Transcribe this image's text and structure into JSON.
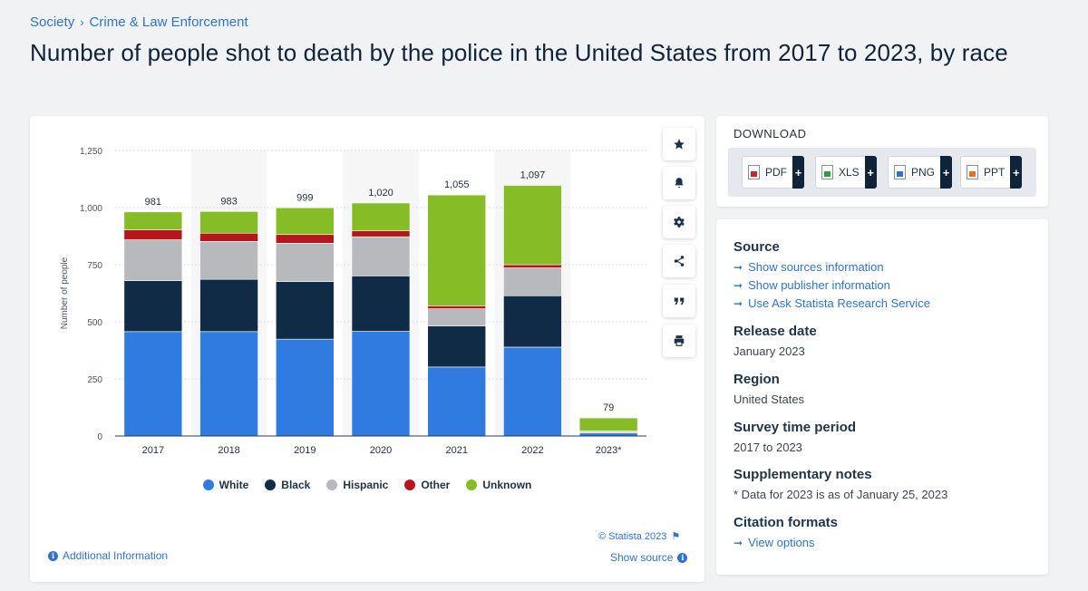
{
  "breadcrumb": {
    "level1": "Society",
    "separator": "›",
    "level2": "Crime & Law Enforcement"
  },
  "page_title": "Number of people shot to death by the police in the United States from 2017 to 2023, by race",
  "chart_data": {
    "type": "bar",
    "stacked": true,
    "title": "",
    "xlabel": "",
    "ylabel": "Number of people",
    "ylim": [
      0,
      1250
    ],
    "yticks": [
      0,
      250,
      500,
      750,
      1000,
      1250
    ],
    "ytick_labels": [
      "0",
      "250",
      "500",
      "750",
      "1,000",
      "1,250"
    ],
    "grid": true,
    "legend_position": "bottom-center",
    "categories": [
      "2017",
      "2018",
      "2019",
      "2020",
      "2021",
      "2022",
      "2023*"
    ],
    "totals": [
      981,
      983,
      999,
      1020,
      1055,
      1097,
      79
    ],
    "total_labels": [
      "981",
      "983",
      "999",
      "1,020",
      "1,055",
      "1,097",
      "79"
    ],
    "series": [
      {
        "name": "White",
        "color": "#2f7be0",
        "values": [
          457,
          457,
          424,
          458,
          302,
          389,
          13
        ]
      },
      {
        "name": "Black",
        "color": "#0f2b45",
        "values": [
          223,
          229,
          252,
          243,
          180,
          225,
          3
        ]
      },
      {
        "name": "Hispanic",
        "color": "#b8b9bc",
        "values": [
          179,
          166,
          168,
          171,
          75,
          122,
          6
        ]
      },
      {
        "name": "Other",
        "color": "#b5161b",
        "values": [
          44,
          36,
          38,
          26,
          13,
          14,
          0
        ]
      },
      {
        "name": "Unknown",
        "color": "#86bc25",
        "values": [
          78,
          95,
          117,
          122,
          485,
          347,
          57
        ]
      }
    ]
  },
  "toolbar": {
    "icons": [
      "star-icon",
      "bell-icon",
      "gear-icon",
      "share-icon",
      "quote-icon",
      "print-icon"
    ]
  },
  "chart_footer": {
    "copyright": "© Statista 2023",
    "show_source": "Show source",
    "additional_info": "Additional Information"
  },
  "download": {
    "title": "DOWNLOAD",
    "buttons": [
      {
        "label": "PDF",
        "plus": "+"
      },
      {
        "label": "XLS",
        "plus": "+"
      },
      {
        "label": "PNG",
        "plus": "+"
      },
      {
        "label": "PPT",
        "plus": "+"
      }
    ]
  },
  "info": {
    "source_heading": "Source",
    "source_links": [
      "Show sources information",
      "Show publisher information",
      "Use Ask Statista Research Service"
    ],
    "release_heading": "Release date",
    "release_value": "January 2023",
    "region_heading": "Region",
    "region_value": "United States",
    "period_heading": "Survey time period",
    "period_value": "2017 to 2023",
    "notes_heading": "Supplementary notes",
    "notes_value": "* Data for 2023 is as of January 25, 2023",
    "citation_heading": "Citation formats",
    "citation_link": "View options"
  }
}
